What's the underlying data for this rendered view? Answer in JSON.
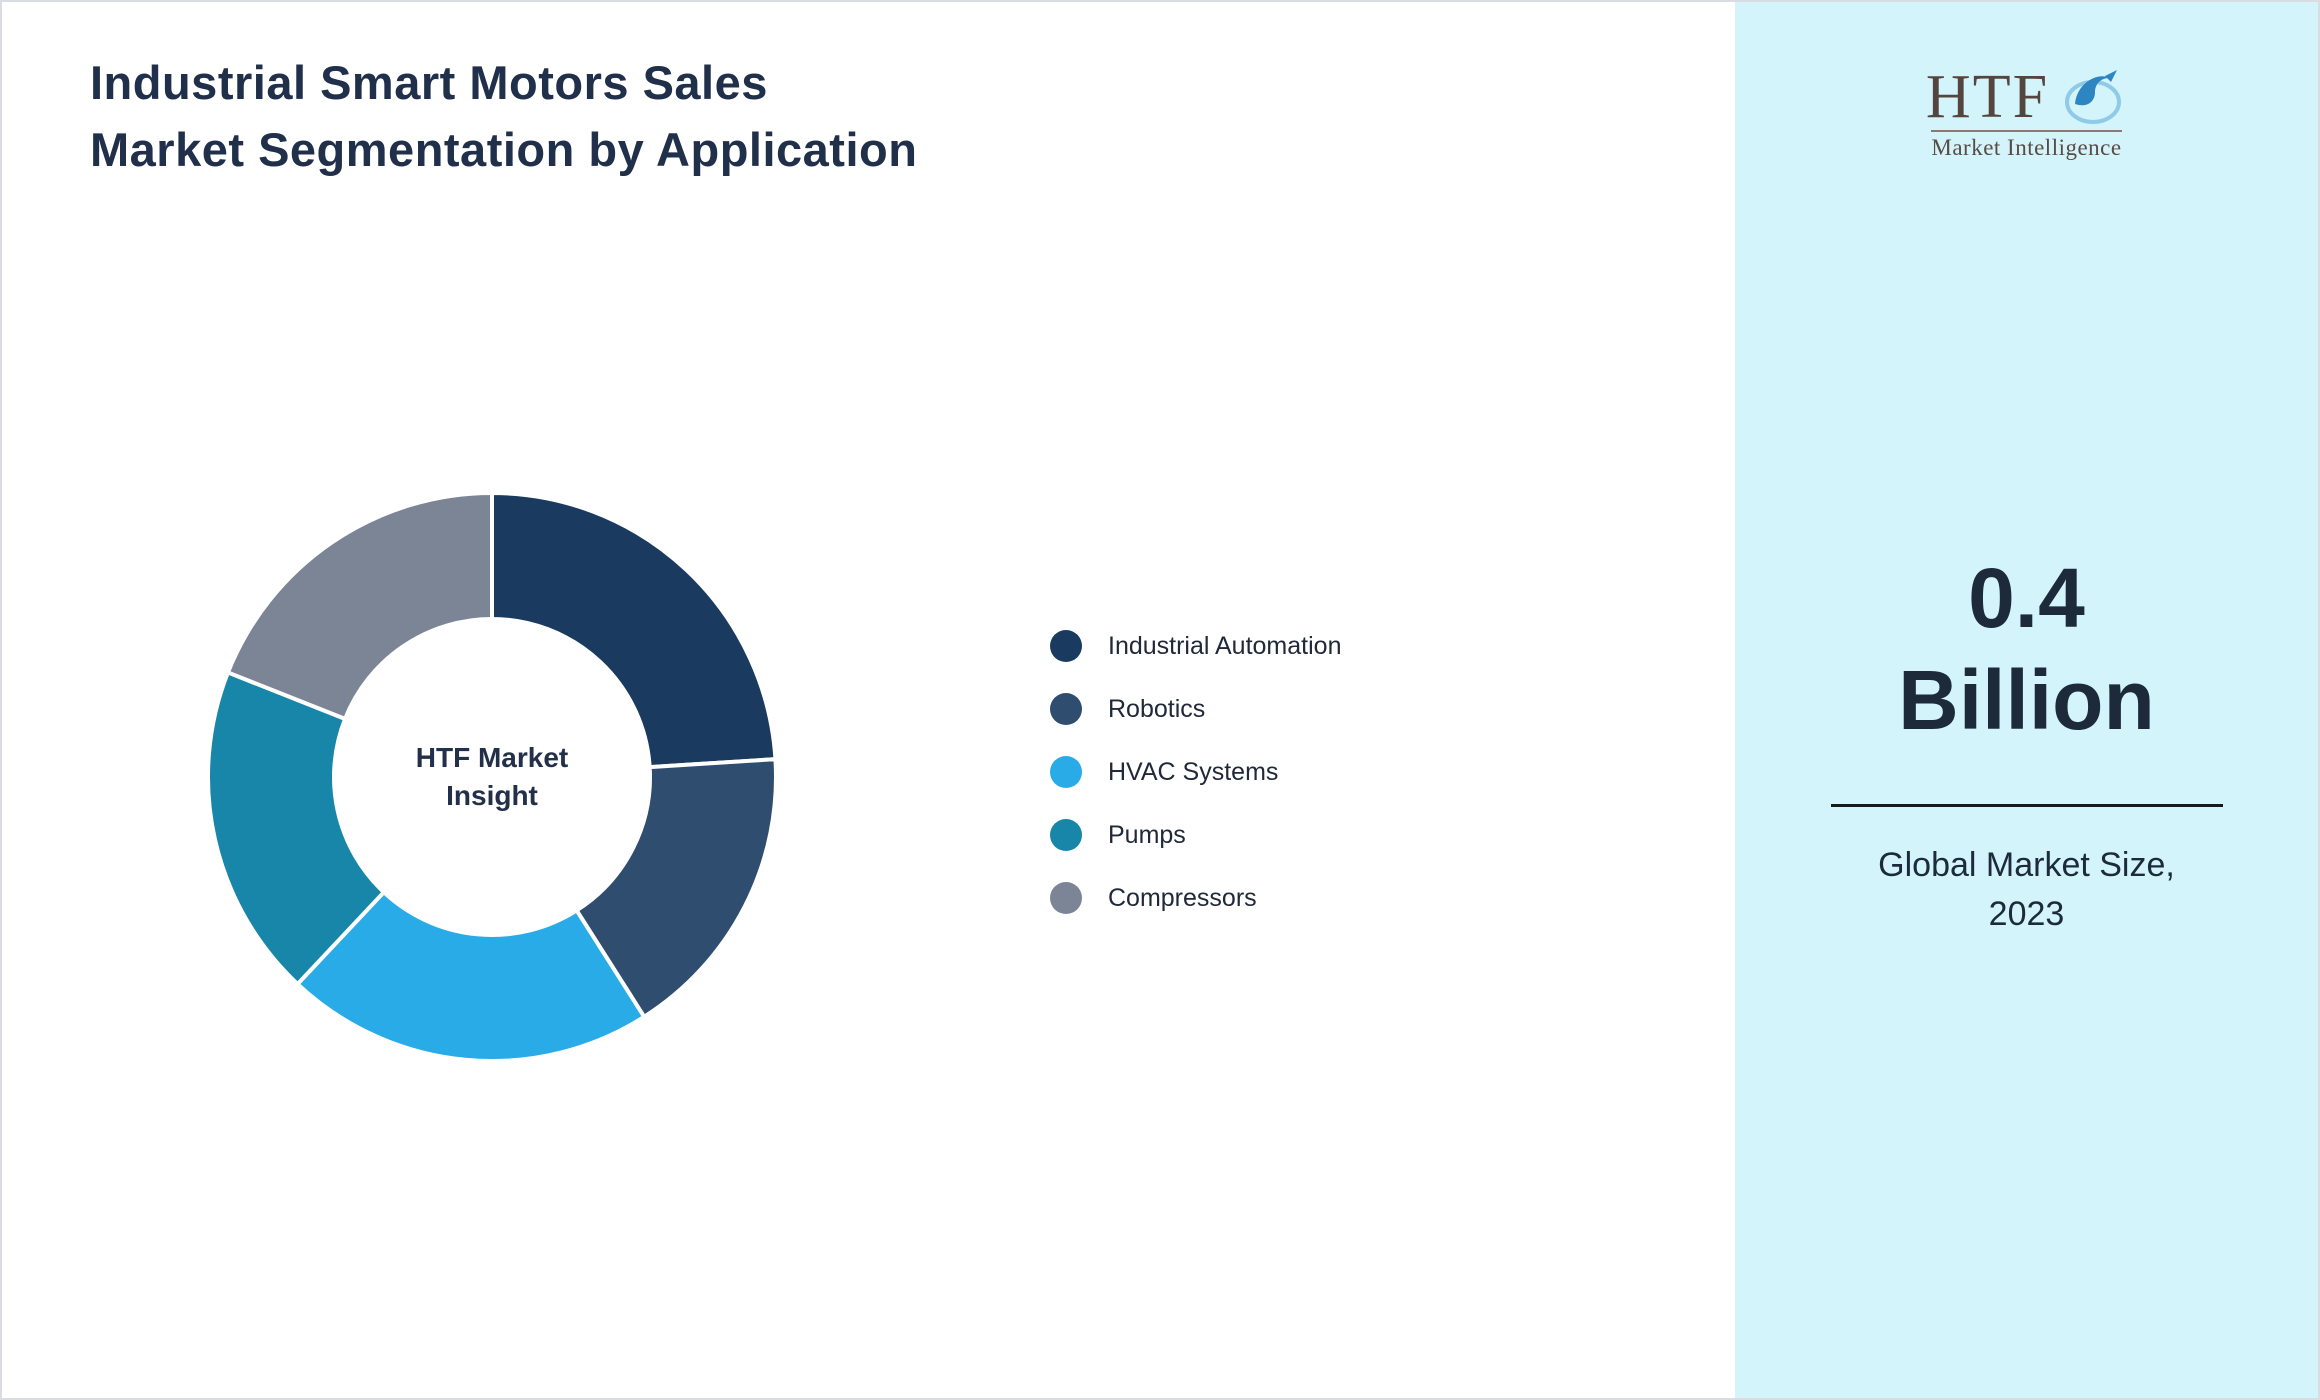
{
  "title": "Industrial Smart Motors Sales Market Segmentation by Application",
  "chart_data": {
    "type": "pie",
    "donut": true,
    "title": "Industrial Smart Motors Sales Market Segmentation by Application",
    "center_label": "HTF Market Insight",
    "legend_position": "right",
    "start_angle_deg": 0,
    "segments": [
      {
        "label": "Industrial Automation",
        "value": 24,
        "color": "#1b3a60"
      },
      {
        "label": "Robotics",
        "value": 17,
        "color": "#2f4d6e"
      },
      {
        "label": "HVAC Systems",
        "value": 21,
        "color": "#29abe8"
      },
      {
        "label": "Pumps",
        "value": 19,
        "color": "#1786a8"
      },
      {
        "label": "Compressors",
        "value": 19,
        "color": "#7b8595"
      }
    ]
  },
  "side_panel": {
    "background": "#d3f4fb",
    "logo": {
      "text": "HTF",
      "subtext": "Market Intelligence",
      "mark": "dolphin-swoosh-icon",
      "mark_color": "#2e86c1"
    },
    "stat": {
      "line1": "0.4",
      "line2": "Billion",
      "caption": "Global Market Size, 2023"
    }
  }
}
